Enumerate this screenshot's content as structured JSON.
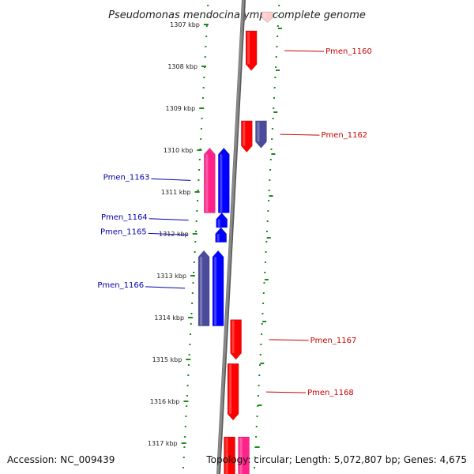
{
  "title": "Pseudomonas mendocina ymp, complete genome",
  "ticks": [
    {
      "label": "1307 kbp",
      "kbp": 1307
    },
    {
      "label": "1308 kbp",
      "kbp": 1308
    },
    {
      "label": "1309 kbp",
      "kbp": 1309
    },
    {
      "label": "1310 kbp",
      "kbp": 1310
    },
    {
      "label": "1311 kbp",
      "kbp": 1311
    },
    {
      "label": "1312 kbp",
      "kbp": 1312
    },
    {
      "label": "1313 kbp",
      "kbp": 1313
    },
    {
      "label": "1314 kbp",
      "kbp": 1314
    },
    {
      "label": "1315 kbp",
      "kbp": 1315
    },
    {
      "label": "1316 kbp",
      "kbp": 1316
    },
    {
      "label": "1317 kbp",
      "kbp": 1317
    }
  ],
  "genes": [
    {
      "strand": "+",
      "track": "near",
      "start": 1307.15,
      "end": 1308.1,
      "color": "#ff0000",
      "label": "Pmen_1160"
    },
    {
      "strand": "+",
      "track": "near",
      "start": 1309.3,
      "end": 1310.05,
      "color": "#ff0000",
      "label": ""
    },
    {
      "strand": "+",
      "track": "far",
      "start": 1309.3,
      "end": 1309.95,
      "color": "#4b4b9b",
      "label": "Pmen_1162"
    },
    {
      "strand": "-",
      "track": "near",
      "start": 1309.95,
      "end": 1311.5,
      "color": "#0000ff",
      "label": "Pmen_1163"
    },
    {
      "strand": "-",
      "track": "far",
      "start": 1309.95,
      "end": 1311.5,
      "color": "#ff2288",
      "label": ""
    },
    {
      "strand": "-",
      "track": "near",
      "start": 1311.5,
      "end": 1311.85,
      "color": "#0000ff",
      "label": "Pmen_1164"
    },
    {
      "strand": "-",
      "track": "near",
      "start": 1311.85,
      "end": 1312.2,
      "color": "#0000ff",
      "label": "Pmen_1165"
    },
    {
      "strand": "-",
      "track": "near",
      "start": 1312.4,
      "end": 1314.2,
      "color": "#0000ff",
      "label": "Pmen_1166"
    },
    {
      "strand": "-",
      "track": "far",
      "start": 1312.4,
      "end": 1314.2,
      "color": "#4b4b9b",
      "label": ""
    },
    {
      "strand": "+",
      "track": "near",
      "start": 1314.05,
      "end": 1315.0,
      "color": "#ff0000",
      "label": "Pmen_1167"
    },
    {
      "strand": "+",
      "track": "near",
      "start": 1315.1,
      "end": 1316.45,
      "color": "#ff0000",
      "label": "Pmen_1168"
    },
    {
      "strand": "+",
      "track": "near",
      "start": 1316.85,
      "end": 1317.9,
      "color": "#ff0000",
      "label": ""
    },
    {
      "strand": "+",
      "track": "far",
      "start": 1316.85,
      "end": 1317.9,
      "color": "#ff2288",
      "label": ""
    },
    {
      "strand": "+",
      "track": "far",
      "start": 1306.7,
      "end": 1306.95,
      "color": "#ffcccc",
      "label": ""
    }
  ],
  "footer": {
    "accession": "Accession: NC_009439",
    "summary": "Topology: circular; Length: 5,072,807 bp; Genes: 4,675"
  },
  "colors": {
    "backbone": "#8a8a8a",
    "tick": "#1a8a1a",
    "plus_label": "#cc0000",
    "minus_label": "#0000aa"
  }
}
